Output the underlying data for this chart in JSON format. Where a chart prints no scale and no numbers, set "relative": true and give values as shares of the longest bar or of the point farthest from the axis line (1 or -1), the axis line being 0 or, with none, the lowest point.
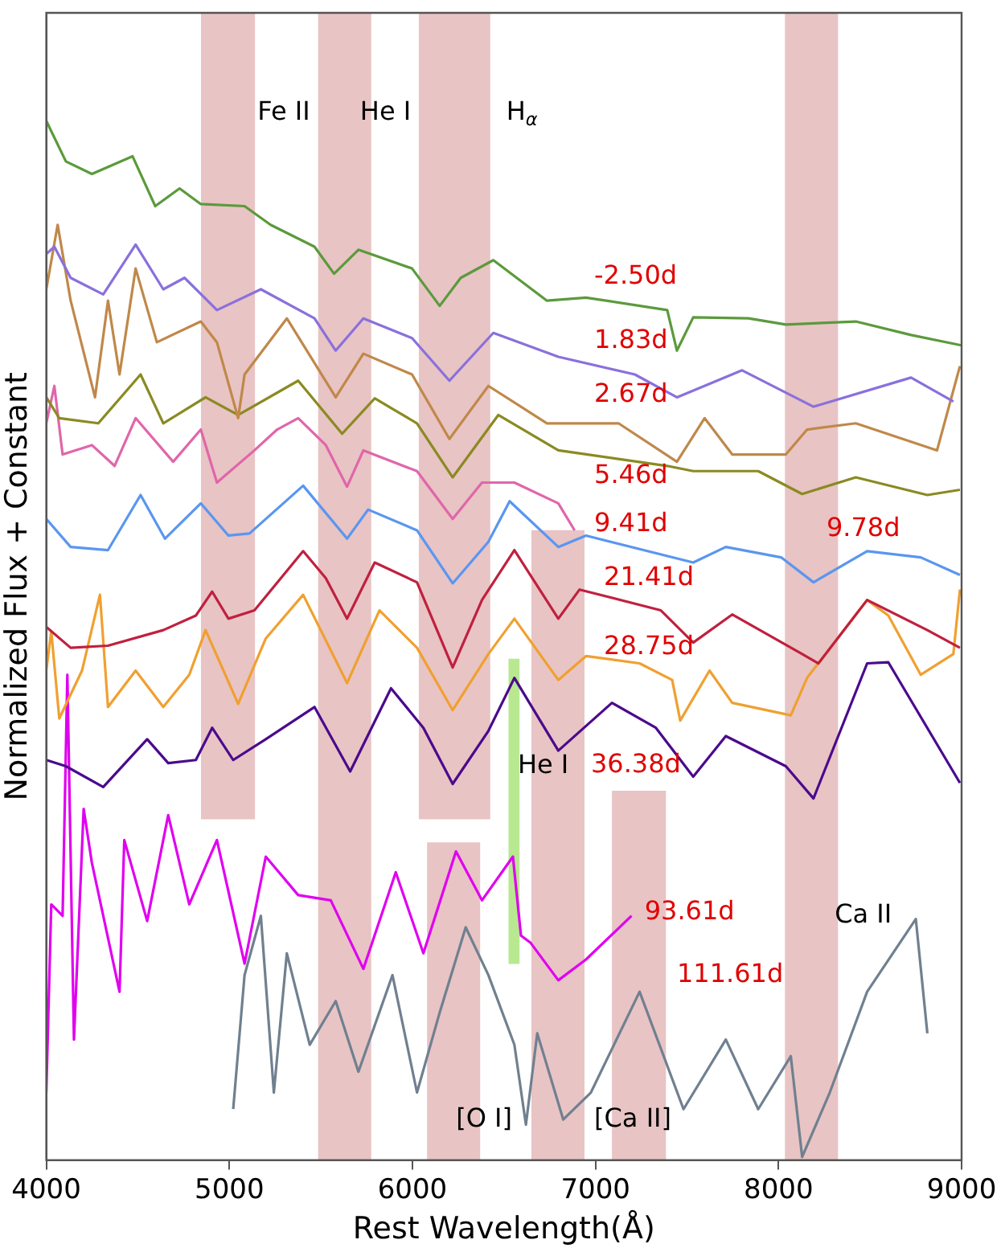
{
  "chart_data": {
    "type": "line",
    "relative": true,
    "xlabel": "Rest Wavelength(Å)",
    "ylabel": "Normalized Flux + Constant",
    "xlim": [
      4000,
      9000
    ],
    "xticks": [
      4000,
      5000,
      6000,
      7000,
      8000,
      9000
    ],
    "grid": false,
    "legend": false,
    "marker": "none",
    "line_style": "solid",
    "series": [
      {
        "color": "#5b9a3c",
        "x": [
          4000,
          4107,
          4249,
          4471,
          4595,
          4728,
          4844,
          5083,
          5225,
          5465,
          5572,
          5705,
          5998,
          6149,
          6264,
          6442,
          6735,
          6948,
          7392,
          7445,
          7534,
          7836,
          8040,
          8422,
          8724,
          9000
        ],
        "values": [
          1.0,
          0.961,
          0.949,
          0.966,
          0.918,
          0.935,
          0.92,
          0.918,
          0.9,
          0.879,
          0.853,
          0.876,
          0.858,
          0.822,
          0.849,
          0.866,
          0.827,
          0.83,
          0.818,
          0.779,
          0.811,
          0.81,
          0.804,
          0.807,
          0.794,
          0.784
        ]
      },
      {
        "color": "#8a70dc",
        "x": [
          4000,
          4044,
          4133,
          4311,
          4488,
          4639,
          4755,
          4932,
          5172,
          5465,
          5581,
          5732,
          5998,
          6202,
          6442,
          6797,
          7215,
          7445,
          7801,
          8191,
          8724,
          8955
        ],
        "values": [
          0.872,
          0.879,
          0.849,
          0.833,
          0.881,
          0.838,
          0.849,
          0.818,
          0.838,
          0.81,
          0.779,
          0.81,
          0.791,
          0.75,
          0.796,
          0.773,
          0.756,
          0.734,
          0.76,
          0.725,
          0.753,
          0.73
        ]
      },
      {
        "color": "#c0884a",
        "x": [
          4000,
          4062,
          4133,
          4266,
          4337,
          4400,
          4488,
          4604,
          4844,
          4932,
          5048,
          5083,
          5314,
          5581,
          5732,
          5998,
          6202,
          6415,
          6735,
          7126,
          7445,
          7596,
          7747,
          8040,
          8156,
          8422,
          8866,
          8991
        ],
        "values": [
          0.838,
          0.9,
          0.827,
          0.734,
          0.827,
          0.756,
          0.858,
          0.787,
          0.807,
          0.787,
          0.714,
          0.756,
          0.81,
          0.734,
          0.776,
          0.756,
          0.694,
          0.745,
          0.709,
          0.709,
          0.672,
          0.714,
          0.679,
          0.679,
          0.703,
          0.709,
          0.683,
          0.764
        ]
      },
      {
        "color": "#8a8a22",
        "x": [
          4000,
          4071,
          4284,
          4515,
          4639,
          4870,
          5048,
          5376,
          5616,
          5794,
          6025,
          6220,
          6469,
          6797,
          7392,
          7534,
          7889,
          8129,
          8422,
          8813,
          8991
        ],
        "values": [
          0.734,
          0.714,
          0.709,
          0.756,
          0.709,
          0.734,
          0.717,
          0.75,
          0.699,
          0.733,
          0.709,
          0.657,
          0.717,
          0.683,
          0.668,
          0.663,
          0.663,
          0.641,
          0.657,
          0.64,
          0.645
        ]
      },
      {
        "color": "#e066aa",
        "x": [
          4000,
          4044,
          4089,
          4249,
          4373,
          4488,
          4693,
          4844,
          4932,
          5137,
          5261,
          5376,
          5527,
          5643,
          5732,
          6025,
          6220,
          6380,
          6557,
          6797,
          6886
        ],
        "values": [
          0.709,
          0.745,
          0.679,
          0.688,
          0.668,
          0.714,
          0.672,
          0.703,
          0.652,
          0.683,
          0.703,
          0.714,
          0.688,
          0.648,
          0.683,
          0.663,
          0.617,
          0.652,
          0.652,
          0.632,
          0.606
        ]
      },
      {
        "color": "#5a96f0",
        "x": [
          4000,
          4133,
          4337,
          4515,
          4648,
          4844,
          4995,
          5110,
          5403,
          5643,
          5758,
          6025,
          6220,
          6415,
          6531,
          6797,
          6948,
          7534,
          7712,
          8014,
          8191,
          8484,
          8777,
          8991
        ],
        "values": [
          0.617,
          0.59,
          0.587,
          0.64,
          0.598,
          0.632,
          0.601,
          0.603,
          0.649,
          0.598,
          0.626,
          0.606,
          0.555,
          0.595,
          0.634,
          0.59,
          0.601,
          0.575,
          0.59,
          0.58,
          0.556,
          0.586,
          0.58,
          0.563
        ]
      },
      {
        "color": "#c0203f",
        "x": [
          4000,
          4133,
          4337,
          4639,
          4817,
          4906,
          4995,
          5137,
          5403,
          5527,
          5643,
          5794,
          6025,
          6220,
          6380,
          6557,
          6797,
          6913,
          7357,
          7534,
          7747,
          8129,
          8218,
          8484,
          8813,
          8991
        ],
        "values": [
          0.513,
          0.493,
          0.495,
          0.51,
          0.524,
          0.547,
          0.521,
          0.529,
          0.586,
          0.56,
          0.521,
          0.575,
          0.556,
          0.474,
          0.539,
          0.587,
          0.521,
          0.549,
          0.529,
          0.498,
          0.525,
          0.487,
          0.478,
          0.539,
          0.51,
          0.493
        ]
      },
      {
        "color": "#f0a030",
        "x": [
          4000,
          4027,
          4071,
          4195,
          4293,
          4337,
          4488,
          4639,
          4781,
          4870,
          5048,
          5199,
          5403,
          5643,
          5820,
          6025,
          6220,
          6415,
          6557,
          6797,
          6948,
          7241,
          7419,
          7463,
          7623,
          7747,
          8067,
          8156,
          8484,
          8600,
          8777,
          8955,
          8991
        ],
        "values": [
          0.471,
          0.509,
          0.425,
          0.471,
          0.544,
          0.436,
          0.471,
          0.436,
          0.467,
          0.51,
          0.439,
          0.502,
          0.544,
          0.459,
          0.529,
          0.493,
          0.433,
          0.487,
          0.521,
          0.462,
          0.485,
          0.478,
          0.462,
          0.423,
          0.471,
          0.44,
          0.428,
          0.464,
          0.539,
          0.524,
          0.467,
          0.487,
          0.549
        ]
      },
      {
        "color": "#4b0a8c",
        "x": [
          4000,
          4107,
          4311,
          4551,
          4666,
          4817,
          4906,
          5021,
          5199,
          5465,
          5660,
          5883,
          6060,
          6220,
          6415,
          6557,
          6797,
          7090,
          7330,
          7534,
          7712,
          8040,
          8191,
          8484,
          8600,
          8991
        ],
        "values": [
          0.385,
          0.379,
          0.359,
          0.405,
          0.382,
          0.385,
          0.416,
          0.385,
          0.405,
          0.436,
          0.374,
          0.454,
          0.416,
          0.362,
          0.413,
          0.464,
          0.394,
          0.44,
          0.416,
          0.369,
          0.408,
          0.379,
          0.348,
          0.478,
          0.479,
          0.363
        ]
      },
      {
        "color": "#e000f0",
        "x": [
          4000,
          4027,
          4089,
          4115,
          4151,
          4204,
          4249,
          4400,
          4426,
          4551,
          4666,
          4781,
          4932,
          5083,
          5199,
          5376,
          5554,
          5732,
          5909,
          6060,
          6238,
          6380,
          6549,
          6593,
          6646,
          6797,
          6948,
          7197
        ],
        "values": [
          0.065,
          0.246,
          0.235,
          0.467,
          0.116,
          0.338,
          0.286,
          0.162,
          0.308,
          0.23,
          0.332,
          0.246,
          0.308,
          0.189,
          0.292,
          0.255,
          0.25,
          0.184,
          0.277,
          0.199,
          0.297,
          0.25,
          0.292,
          0.216,
          0.209,
          0.173,
          0.193,
          0.235
        ]
      },
      {
        "color": "#708090",
        "x": [
          5021,
          5083,
          5172,
          5243,
          5314,
          5439,
          5581,
          5705,
          5891,
          6025,
          6149,
          6291,
          6415,
          6557,
          6620,
          6682,
          6824,
          6975,
          7241,
          7481,
          7712,
          7889,
          8067,
          8129,
          8280,
          8484,
          8750,
          8813
        ],
        "values": [
          0.049,
          0.178,
          0.235,
          0.065,
          0.199,
          0.111,
          0.153,
          0.085,
          0.178,
          0.065,
          0.142,
          0.224,
          0.178,
          0.111,
          0.034,
          0.122,
          0.039,
          0.065,
          0.162,
          0.049,
          0.116,
          0.049,
          0.1,
          0.003,
          0.065,
          0.162,
          0.232,
          0.122
        ]
      }
    ],
    "bands": [
      {
        "axis": "x",
        "from": 4845,
        "to": 5140,
        "color": "#e8c4c4"
      },
      {
        "axis": "x",
        "from": 5485,
        "to": 5775,
        "color": "#e8c4c4"
      },
      {
        "axis": "x",
        "from": 6035,
        "to": 6425,
        "color": "#e8c4c4"
      },
      {
        "axis": "x",
        "from": 8035,
        "to": 8325,
        "color": "#e8c4c4"
      },
      {
        "axis": "x",
        "from": 6650,
        "to": 6940,
        "color": "#e8c4c4"
      },
      {
        "axis": "x",
        "from": 7090,
        "to": 7385,
        "color": "#e8c4c4"
      },
      {
        "axis": "x",
        "from": 6080,
        "to": 6370,
        "color": "#e8c4c4"
      },
      {
        "axis": "x",
        "from": 6525,
        "to": 6585,
        "color": "#b8e890"
      }
    ],
    "annotations": [
      "-2.50d",
      "1.83d",
      "2.67d",
      "5.46d",
      "9.41d",
      "9.78d",
      "21.41d",
      "28.75d",
      "36.38d",
      "93.61d",
      "111.61d",
      "Fe II",
      "He I",
      "H$_{α}$",
      "He I",
      "[O I]",
      "[Ca II]",
      "Ca II"
    ]
  }
}
